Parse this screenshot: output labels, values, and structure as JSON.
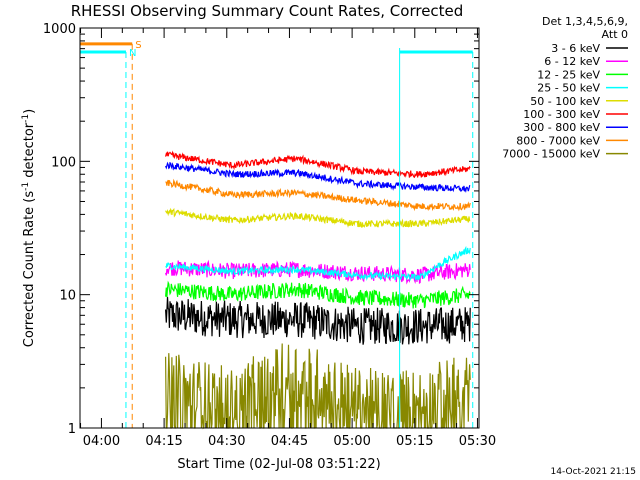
{
  "chart_data": {
    "type": "line",
    "title": "RHESSI Observing Summary Count Rates, Corrected",
    "xlabel": "Start Time (02-Jul-08 03:51:22)",
    "ylabel_main": "Corrected Count Rate (s",
    "ylabel_sup1": "-1",
    "ylabel_mid": " detector",
    "ylabel_sup2": "-1",
    "ylabel_end": ")",
    "y_scale": "log",
    "ylim": [
      1,
      1000
    ],
    "xlim_minutes": [
      3.5,
      99
    ],
    "x_tick_labels": [
      "04:00",
      "04:15",
      "04:30",
      "04:45",
      "05:00",
      "05:15",
      "05:30"
    ],
    "x_tick_minutes": [
      8.63,
      23.63,
      38.63,
      53.63,
      68.63,
      83.63,
      98.63
    ],
    "y_tick_labels": [
      "1",
      "10",
      "100",
      "1000"
    ],
    "y_tick_values": [
      1,
      10,
      100,
      1000
    ],
    "legend": {
      "header": [
        "Det 1,3,4,5,6,9,",
        "Att 0"
      ],
      "position": "right"
    },
    "series": [
      {
        "name": "3 - 6 keV",
        "color": "#000000",
        "x": [
          24,
          40,
          55,
          70,
          85,
          97
        ],
        "y": [
          7,
          6.5,
          6.5,
          5.8,
          5.8,
          6
        ]
      },
      {
        "name": "6 - 12 keV",
        "color": "#ff00ff",
        "x": [
          24,
          40,
          55,
          70,
          85,
          97
        ],
        "y": [
          16,
          15,
          15.5,
          14.5,
          14,
          15.5
        ]
      },
      {
        "name": "12 - 25 keV",
        "color": "#00ff00",
        "x": [
          24,
          40,
          55,
          70,
          85,
          97
        ],
        "y": [
          11,
          10,
          11,
          9.5,
          9,
          10
        ]
      },
      {
        "name": "25 - 50 keV",
        "color": "#00ffff",
        "x": [
          24,
          40,
          55,
          70,
          85,
          97
        ],
        "y": [
          16.5,
          15,
          15.5,
          14,
          13.5,
          22
        ]
      },
      {
        "name": "50 - 100 keV",
        "color": "#dddd00",
        "x": [
          24,
          40,
          55,
          70,
          85,
          97
        ],
        "y": [
          42,
          36,
          39,
          34,
          34,
          37
        ]
      },
      {
        "name": "100 - 300 keV",
        "color": "#ff0000",
        "x": [
          24,
          40,
          55,
          70,
          85,
          97
        ],
        "y": [
          112,
          93,
          105,
          84,
          80,
          88
        ]
      },
      {
        "name": "300 - 800 keV",
        "color": "#0000ff",
        "x": [
          24,
          40,
          55,
          70,
          85,
          97
        ],
        "y": [
          94,
          80,
          82,
          68,
          64,
          62
        ]
      },
      {
        "name": "800 - 7000 keV",
        "color": "#ff8800",
        "x": [
          24,
          40,
          55,
          70,
          85,
          97
        ],
        "y": [
          69,
          56,
          58,
          51,
          46,
          46
        ]
      },
      {
        "name": "7000 - 15000 keV",
        "color": "#888800",
        "x": [
          24,
          40,
          55,
          70,
          85,
          97
        ],
        "y": [
          2,
          1.5,
          2.5,
          1.5,
          1.5,
          2
        ]
      }
    ],
    "annotations": [
      {
        "label": "S",
        "color": "#ff8800",
        "x_start": 3.5,
        "x_end": 16,
        "y": 760,
        "vline_x": 16
      },
      {
        "label": "N",
        "color": "#00ffff",
        "x_start": 3.5,
        "x_end": 14.5,
        "y": 660,
        "vline_x": 14.5
      },
      {
        "label": "",
        "color": "#00ffff",
        "x_start": 80,
        "x_end": 97.5,
        "y": 660,
        "vline_x": 97.5
      }
    ],
    "night_lines_x": [
      3.5,
      80
    ]
  },
  "timestamp": "14-Oct-2021 21:15"
}
